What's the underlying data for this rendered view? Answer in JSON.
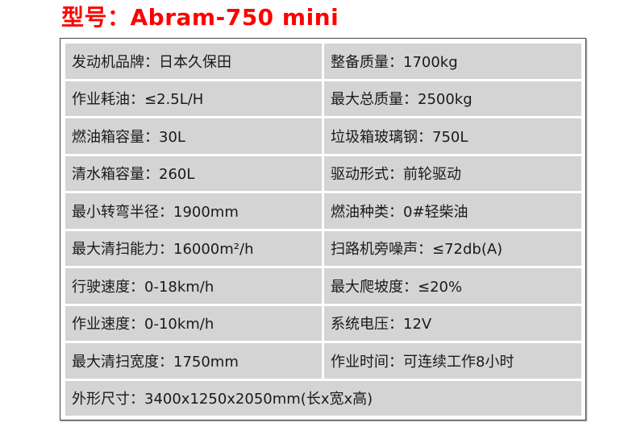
{
  "title": "型号：Abram-750 mini",
  "specs": [
    "发动机品牌：日本久保田",
    "整备质量：1700kg",
    "作业耗油：≤2.5L/H",
    "最大总质量：2500kg",
    "燃油箱容量：30L",
    "垃圾箱玻璃钢：750L",
    "清水箱容量：260L",
    "驱动形式：前轮驱动",
    "最小转弯半径：1900mm",
    "燃油种类：0#轻柴油",
    "最大清扫能力：16000m²/h",
    "扫路机旁噪声：≤72db(A)",
    "行驶速度：0-18km/h",
    "最大爬坡度：≤20%",
    "作业速度：0-10km/h",
    "系统电压：12V",
    "最大清扫宽度：1750mm",
    "作业时间：可连续工作8小时",
    "外形尺寸：3400x1250x2050mm(长x宽x高)"
  ],
  "colors": {
    "title": "#ff0000",
    "cell_bg": "#d4d4d4"
  }
}
